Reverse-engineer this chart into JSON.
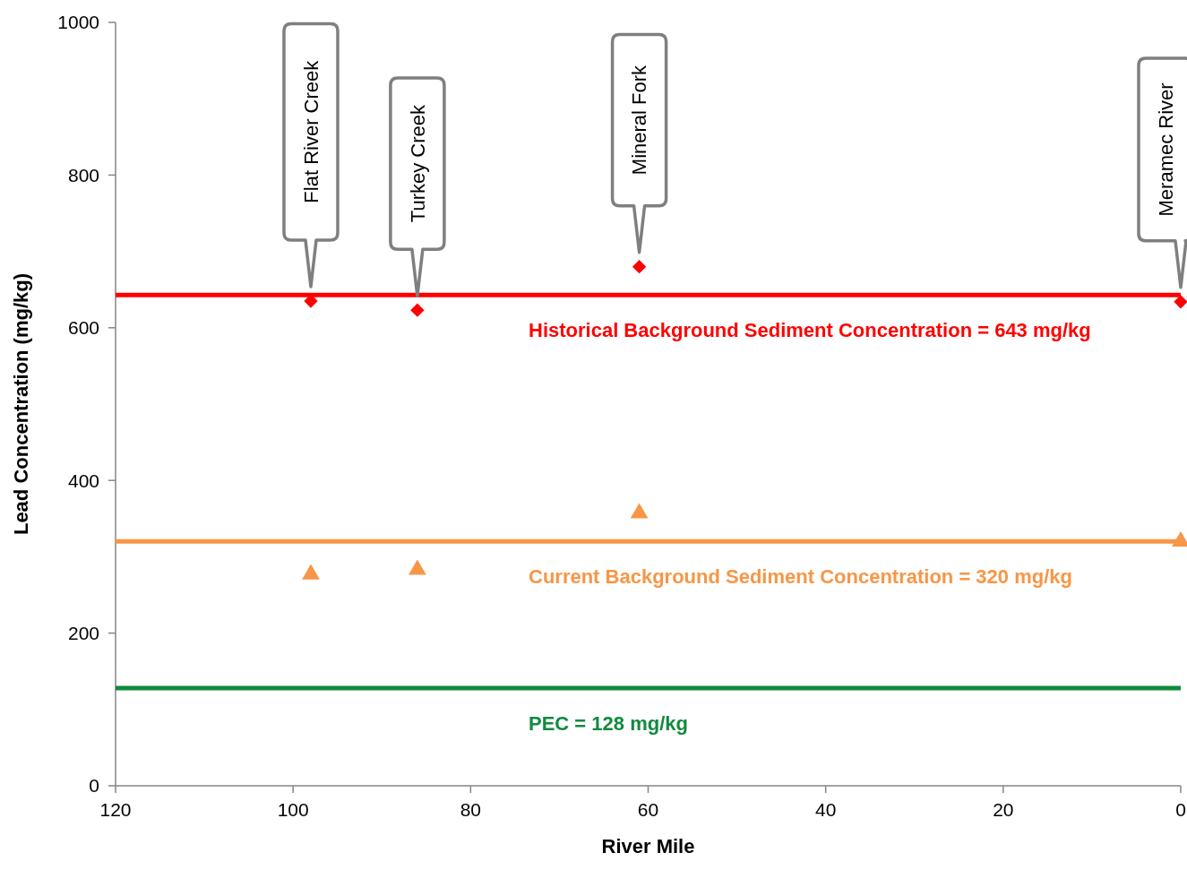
{
  "chart_data": {
    "type": "scatter",
    "xlabel": "River Mile",
    "ylabel": "Lead Concentration (mg/kg)",
    "xlim": [
      120,
      0
    ],
    "xticks": [
      120,
      100,
      80,
      60,
      40,
      20,
      0
    ],
    "ylim": [
      0,
      1000
    ],
    "yticks": [
      0,
      200,
      400,
      600,
      800,
      1000
    ],
    "grid": false,
    "x": [
      98,
      86,
      61,
      0
    ],
    "series": [
      {
        "color": "#ff0000",
        "marker": "diamond",
        "values": [
          635,
          623,
          680,
          634
        ]
      },
      {
        "color": "#f79646",
        "marker": "triangle",
        "values": [
          277,
          283,
          357,
          320
        ]
      }
    ],
    "ref_lines": [
      {
        "axis": "y",
        "value": 643,
        "label": "Historical Background Sediment Concentration = 643 mg/kg",
        "color": "#ff0000"
      },
      {
        "axis": "y",
        "value": 320,
        "label": "Current Background Sediment Concentration = 320 mg/kg",
        "color": "#f79646"
      },
      {
        "axis": "y",
        "value": 128,
        "label": "PEC = 128 mg/kg",
        "color": "#108a3e"
      }
    ],
    "annotations": [
      "Flat River Creek",
      "Turkey Creek",
      "Mineral Fork",
      "Meramec River"
    ]
  }
}
